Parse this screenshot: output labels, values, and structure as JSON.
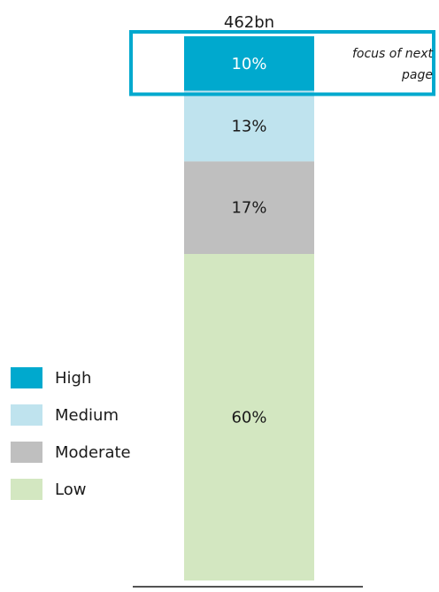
{
  "chart_data": {
    "type": "bar",
    "stacked": true,
    "total_label": "462bn",
    "series": [
      {
        "name": "High",
        "value": 10,
        "label": "10%",
        "color": "#00a9ce",
        "label_color": "#ffffff"
      },
      {
        "name": "Medium",
        "value": 13,
        "label": "13%",
        "color": "#bfe3ee",
        "label_color": "#1a1a1a"
      },
      {
        "name": "Moderate",
        "value": 17,
        "label": "17%",
        "color": "#bfbfbf",
        "label_color": "#1a1a1a"
      },
      {
        "name": "Low",
        "value": 60,
        "label": "60%",
        "color": "#d3e7c1",
        "label_color": "#1a1a1a"
      }
    ],
    "annotation": {
      "text_line1": "focus of next",
      "text_line2": "page",
      "target_series": "High",
      "color": "#00a9ce"
    },
    "legend_placement": "bottom-left"
  }
}
